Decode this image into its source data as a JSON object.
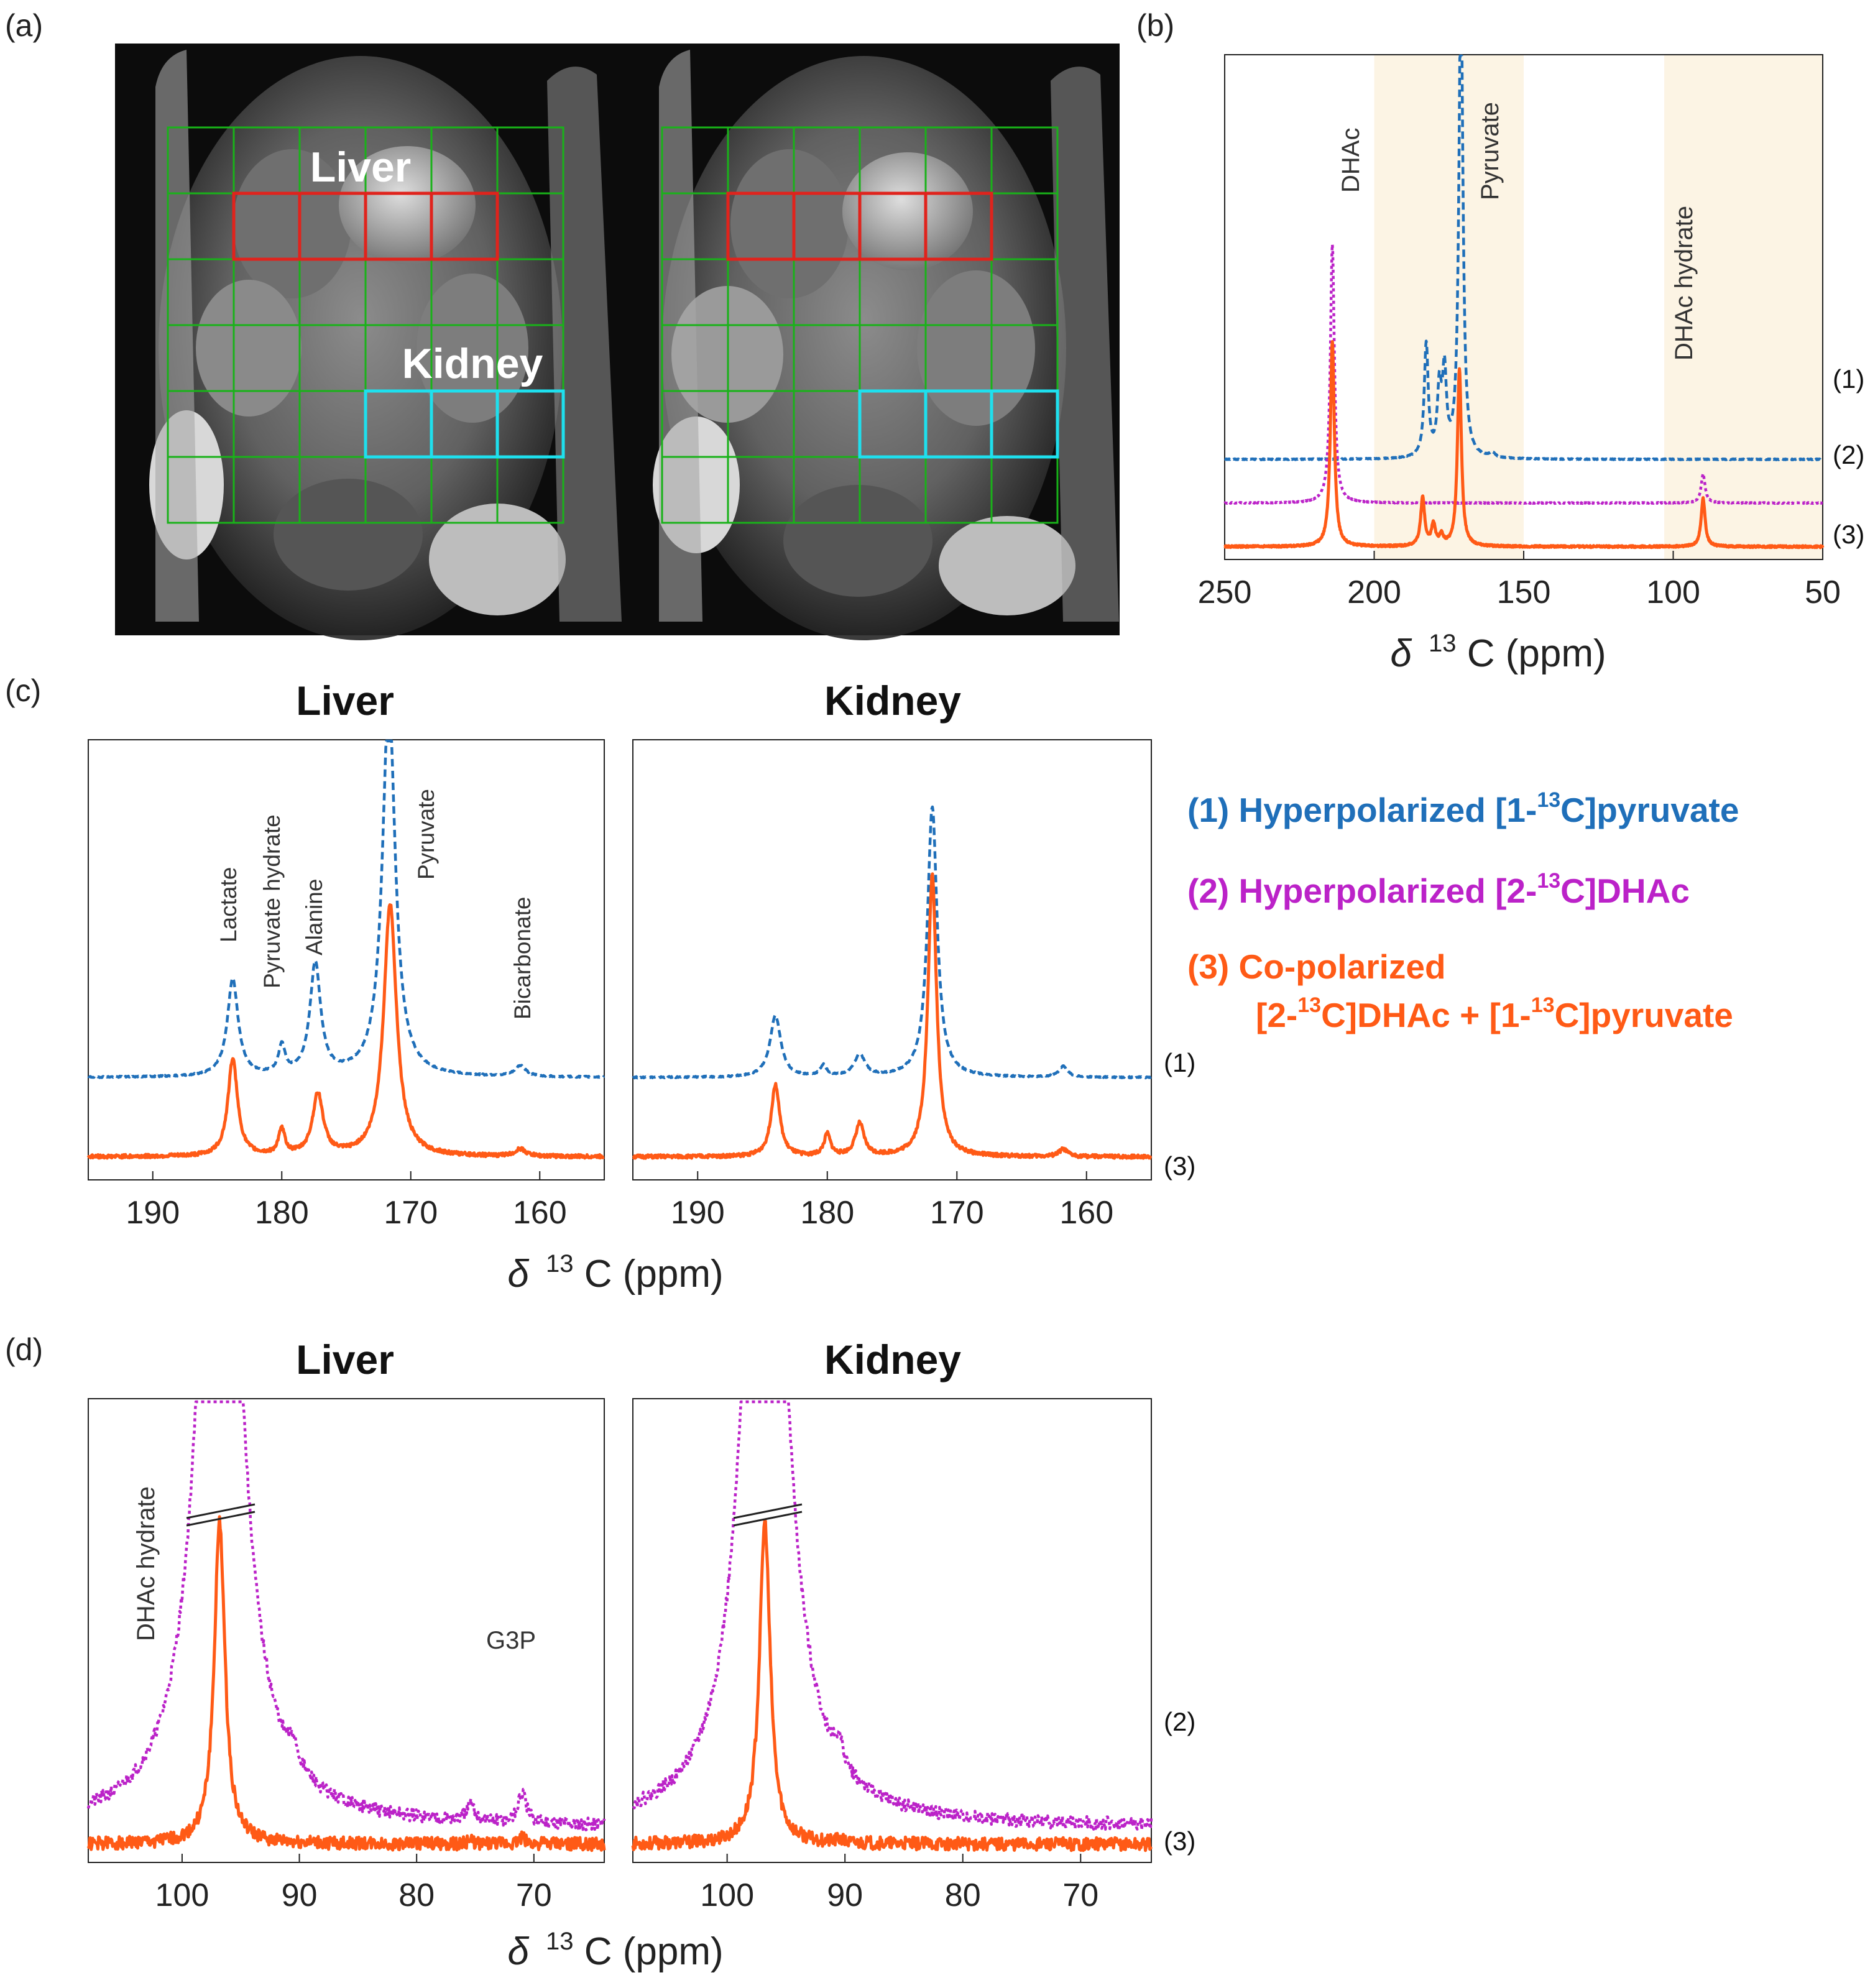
{
  "panels": {
    "a": "(a)",
    "b": "(b)",
    "c": "(c)",
    "d": "(d)"
  },
  "mri": {
    "roi_labels": [
      "Liver",
      "Kidney"
    ]
  },
  "colors": {
    "pyruvate": "#1f6fb9",
    "dhac": "#bb22c8",
    "copolarized": "#ff5a16",
    "grid_green": "#19b219",
    "liver_roi": "#e0231c",
    "kidney_roi": "#1ee0ee",
    "highlight": "#fcf4e4"
  },
  "legend": {
    "item1": {
      "text1": "(1) Hyperpolarized [1-",
      "sup": "13",
      "text2": "C]pyruvate"
    },
    "item2": {
      "text1": "(2) Hyperpolarized [2-",
      "sup": "13",
      "text2": "C]DHAc"
    },
    "item3": {
      "line1": "(3) Co-polarized",
      "text1": "[2-",
      "sup1": "13",
      "text2": "C]DHAc + [1-",
      "sup2": "13",
      "text3": "C]pyruvate"
    }
  },
  "xlabel": {
    "delta": "δ",
    "sup": "13",
    "text": "C (ppm)"
  },
  "chart_data": [
    {
      "id": "b",
      "type": "line",
      "title": "",
      "xlabel": "δ 13C (ppm)",
      "xlim": [
        250,
        50
      ],
      "xticks": [
        250,
        200,
        150,
        100,
        50
      ],
      "ylabel": "",
      "highlight_ranges": [
        [
          200,
          150
        ],
        [
          103,
          50
        ]
      ],
      "series": [
        {
          "name": "(1)",
          "style": "dashed",
          "baseline": 0.6,
          "peaks": [
            [
              171,
              3.0,
              0.8
            ],
            [
              182.6,
              0.7,
              0.8
            ],
            [
              178.2,
              0.4,
              0.8
            ],
            [
              176.5,
              0.5,
              0.8
            ],
            [
              160.5,
              0.03,
              1.0
            ]
          ]
        },
        {
          "name": "(2)",
          "style": "dotted",
          "baseline": 0.33,
          "peaks": [
            [
              214,
              1.6,
              0.8
            ],
            [
              90,
              0.18,
              0.8
            ]
          ]
        },
        {
          "name": "(3)",
          "style": "solid",
          "baseline": 0.06,
          "peaks": [
            [
              214,
              1.27,
              0.8
            ],
            [
              183.8,
              0.3,
              0.8
            ],
            [
              180.2,
              0.13,
              0.8
            ],
            [
              177.5,
              0.06,
              0.8
            ],
            [
              171.5,
              1.1,
              0.8
            ],
            [
              90,
              0.3,
              0.8
            ]
          ]
        }
      ],
      "annotations": [
        "DHAc",
        "Pyruvate",
        "DHAc hydrate"
      ]
    },
    {
      "id": "c-liver",
      "type": "line",
      "title": "Liver",
      "xlabel": "δ 13C (ppm)",
      "xlim": [
        195,
        155
      ],
      "xticks": [
        190,
        180,
        170,
        160
      ],
      "series": [
        {
          "name": "(1)",
          "style": "dashed",
          "baseline": 0.27,
          "peaks": [
            [
              183.8,
              0.27,
              0.5
            ],
            [
              180.0,
              0.08,
              0.3
            ],
            [
              177.4,
              0.31,
              0.5
            ],
            [
              171.7,
              1.05,
              0.6
            ],
            [
              161.5,
              0.03,
              0.5
            ]
          ]
        },
        {
          "name": "(3)",
          "style": "solid",
          "baseline": 0.05,
          "peaks": [
            [
              183.8,
              0.27,
              0.45
            ],
            [
              180.0,
              0.07,
              0.3
            ],
            [
              177.2,
              0.17,
              0.5
            ],
            [
              171.6,
              0.7,
              0.6
            ],
            [
              161.5,
              0.02,
              0.5
            ]
          ]
        }
      ],
      "annotations": [
        "Lactate",
        "Pyruvate hydrate",
        "Alanine",
        "Pyruvate",
        "Bicarbonate"
      ]
    },
    {
      "id": "c-kidney",
      "type": "line",
      "title": "Kidney",
      "xlabel": "δ 13C (ppm)",
      "xlim": [
        195,
        155
      ],
      "xticks": [
        190,
        180,
        170,
        160
      ],
      "series": [
        {
          "name": "(1)",
          "style": "dashed",
          "baseline": 0.27,
          "peaks": [
            [
              184.0,
              0.17,
              0.5
            ],
            [
              180.3,
              0.03,
              0.3
            ],
            [
              177.5,
              0.06,
              0.5
            ],
            [
              171.9,
              0.75,
              0.45
            ],
            [
              161.8,
              0.03,
              0.4
            ]
          ]
        },
        {
          "name": "(3)",
          "style": "solid",
          "baseline": 0.05,
          "peaks": [
            [
              184.0,
              0.2,
              0.4
            ],
            [
              180.0,
              0.06,
              0.3
            ],
            [
              177.5,
              0.09,
              0.4
            ],
            [
              171.9,
              0.78,
              0.4
            ],
            [
              161.8,
              0.02,
              0.4
            ]
          ]
        }
      ],
      "annotations": []
    },
    {
      "id": "d-liver",
      "type": "line",
      "title": "Liver",
      "xlabel": "δ 13C (ppm)",
      "xlim": [
        108,
        64
      ],
      "xticks": [
        100,
        90,
        80,
        70
      ],
      "series": [
        {
          "name": "(2)",
          "style": "dotted",
          "baseline": 0.09,
          "peaks": [
            [
              96.8,
              4.5,
              1.8
            ],
            [
              90.5,
              0.1,
              0.4
            ],
            [
              75.4,
              0.07,
              0.4
            ],
            [
              71.0,
              0.14,
              0.4
            ]
          ]
        },
        {
          "name": "(3)",
          "style": "solid",
          "baseline": 0.01,
          "peaks": [
            [
              96.8,
              1.5,
              0.55
            ],
            [
              75.4,
              0.015,
              0.3
            ],
            [
              71.0,
              0.03,
              0.3
            ]
          ]
        }
      ],
      "annotations": [
        "DHAc hydrate",
        "G3P"
      ]
    },
    {
      "id": "d-kidney",
      "type": "line",
      "title": "Kidney",
      "xlabel": "δ 13C (ppm)",
      "xlim": [
        108,
        64
      ],
      "xticks": [
        100,
        90,
        80,
        70
      ],
      "series": [
        {
          "name": "(2)",
          "style": "dotted",
          "baseline": 0.09,
          "peaks": [
            [
              96.8,
              4.5,
              1.8
            ],
            [
              90.5,
              0.1,
              0.4
            ]
          ]
        },
        {
          "name": "(3)",
          "style": "solid",
          "baseline": 0.01,
          "peaks": [
            [
              96.8,
              1.5,
              0.55
            ],
            [
              90.5,
              0.015,
              0.3
            ]
          ]
        }
      ],
      "annotations": []
    }
  ],
  "labels": {
    "b": {
      "dhac": "DHAc",
      "pyruvate": "Pyruvate",
      "dhac_hydrate": "DHAc hydrate",
      "tr1": "(1)",
      "tr2": "(2)",
      "tr3": "(3)"
    },
    "c": {
      "lactate": "Lactate",
      "pyruvate_hydrate": "Pyruvate hydrate",
      "alanine": "Alanine",
      "pyruvate": "Pyruvate",
      "bicarbonate": "Bicarbonate",
      "tr1": "(1)",
      "tr3": "(3)",
      "liver": "Liver",
      "kidney": "Kidney"
    },
    "d": {
      "dhac_hydrate": "DHAc hydrate",
      "g3p": "G3P",
      "tr2": "(2)",
      "tr3": "(3)",
      "liver": "Liver",
      "kidney": "Kidney"
    }
  }
}
